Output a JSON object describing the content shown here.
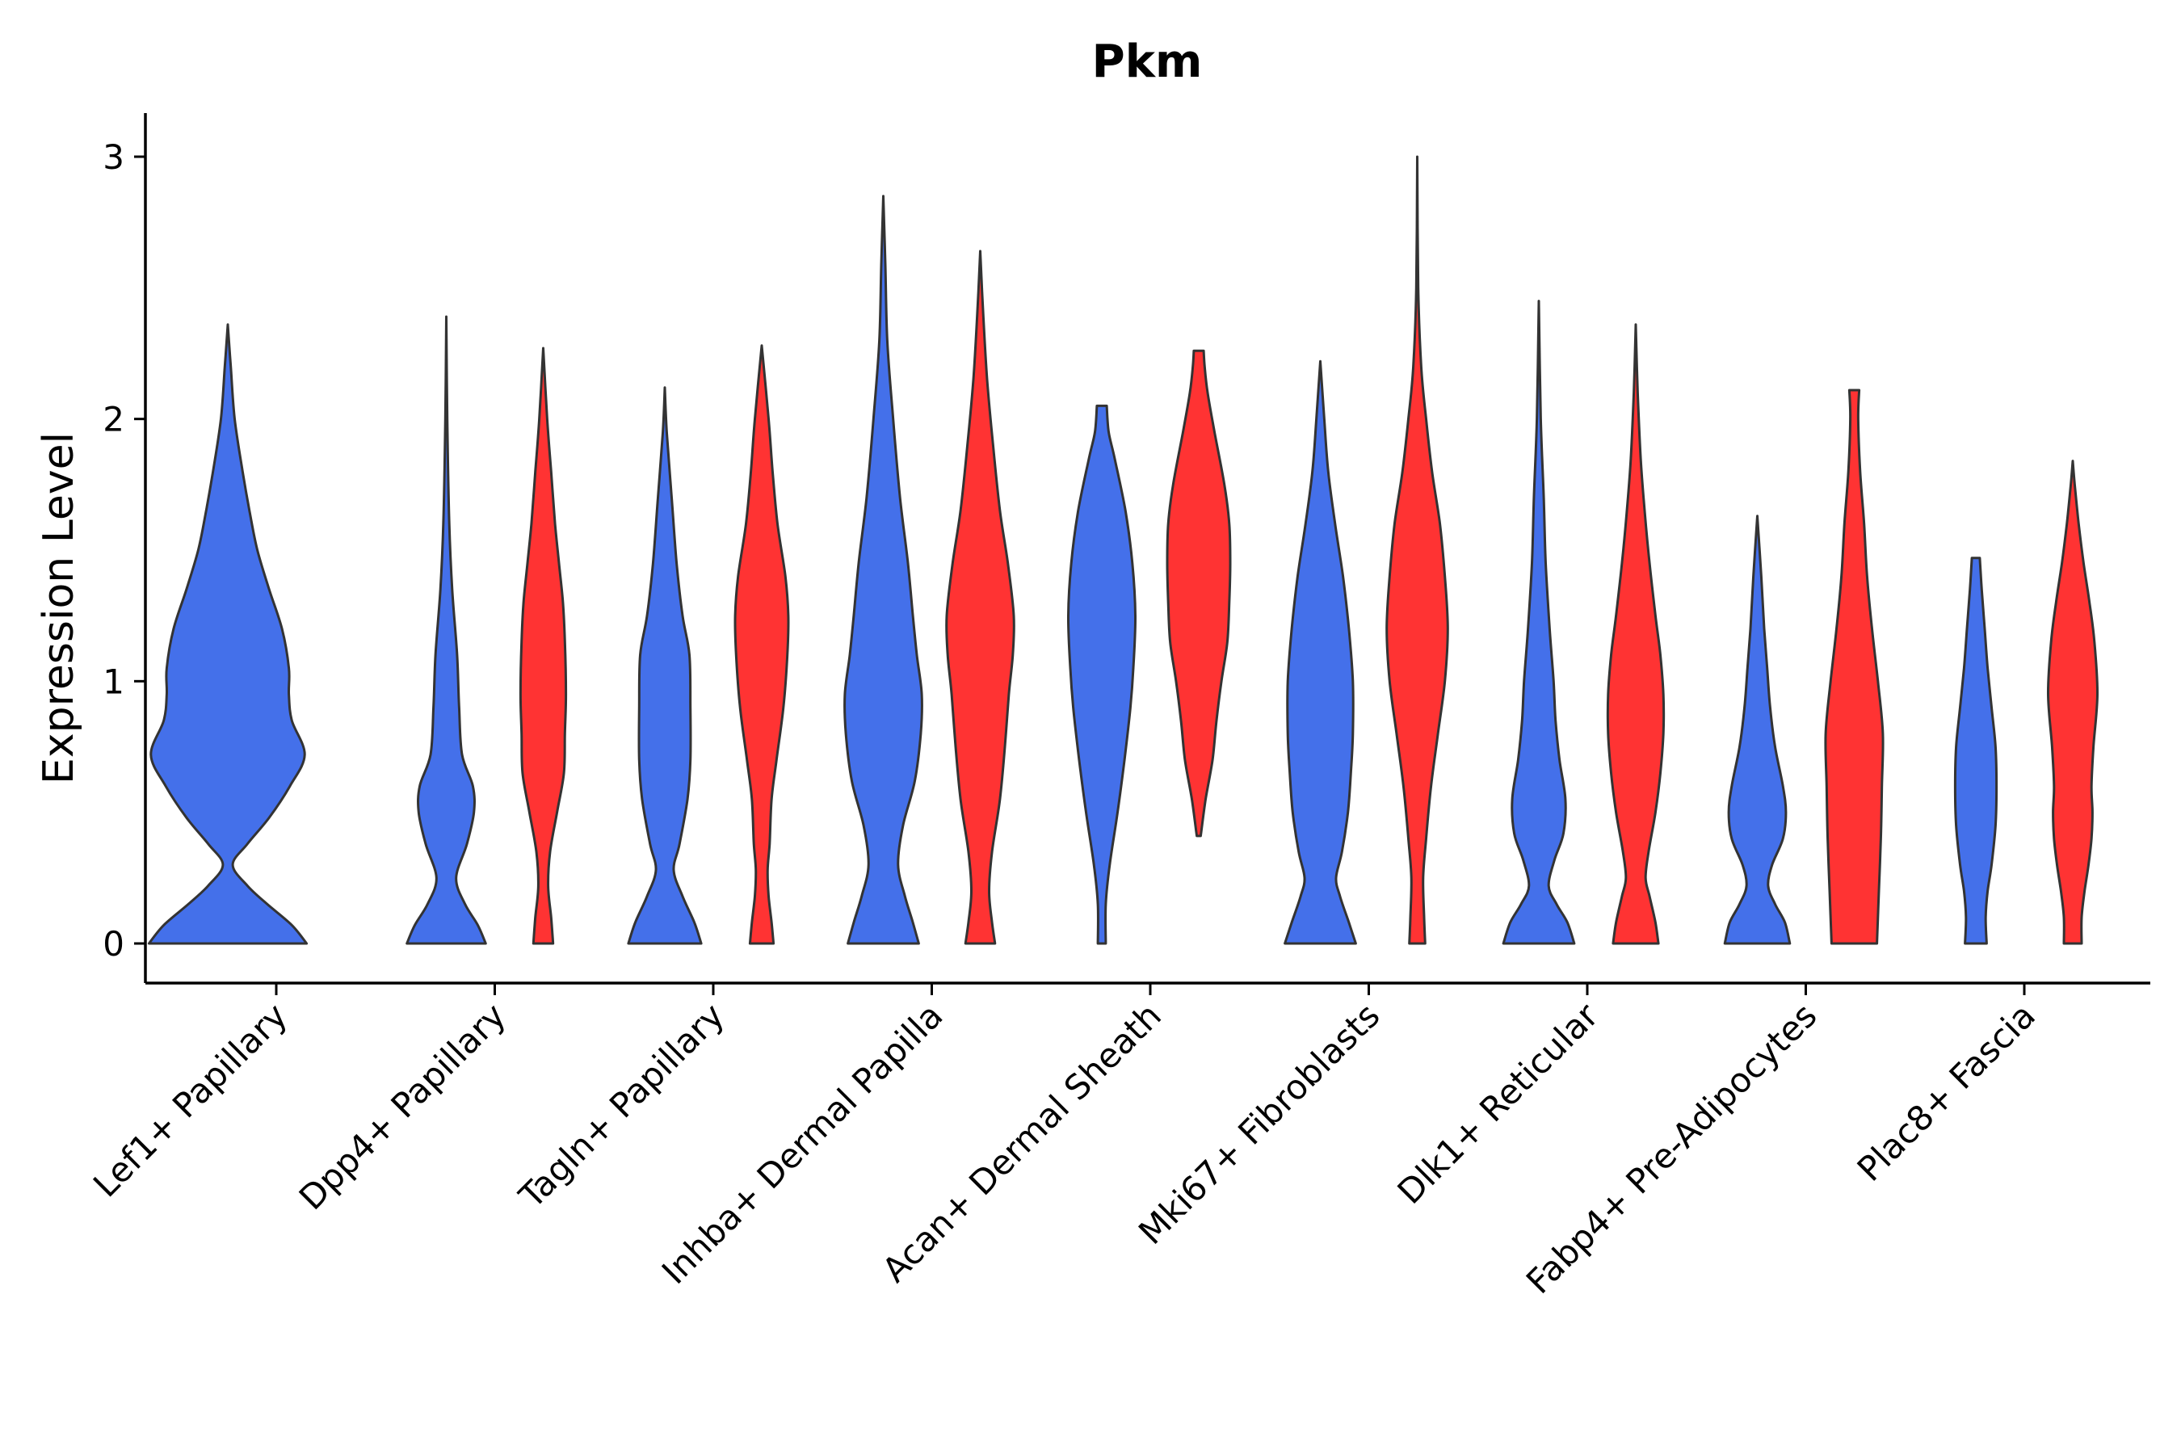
{
  "chart_data": {
    "type": "violin",
    "title": "Pkm",
    "xlabel": "",
    "ylabel": "Expression Level",
    "ylim": [
      -0.15,
      3.15
    ],
    "yticks": [
      0,
      1,
      2,
      3
    ],
    "grid": false,
    "legend": "none",
    "categories": [
      "Lef1+ Papillary",
      "Dpp4+ Papillary",
      "Tagln+ Papillary",
      "Inhba+ Dermal Papilla",
      "Acan+ Dermal Sheath",
      "Mki67+ Fibroblasts",
      "Dlk1+ Reticular",
      "Fabp4+ Pre-Adipocytes",
      "Plac8+ Fascia"
    ],
    "colors": {
      "blue": "#4470EA",
      "red": "#FF3333"
    },
    "violins": [
      {
        "category": 0,
        "group": "blue",
        "max": 2.36,
        "min": 0,
        "profile": [
          [
            0,
            0.8
          ],
          [
            0.07,
            0.65
          ],
          [
            0.15,
            0.4
          ],
          [
            0.22,
            0.2
          ],
          [
            0.3,
            0.05
          ],
          [
            0.38,
            0.2
          ],
          [
            0.48,
            0.42
          ],
          [
            0.6,
            0.63
          ],
          [
            0.72,
            0.78
          ],
          [
            0.85,
            0.65
          ],
          [
            0.95,
            0.62
          ],
          [
            1.05,
            0.62
          ],
          [
            1.2,
            0.55
          ],
          [
            1.35,
            0.42
          ],
          [
            1.5,
            0.3
          ],
          [
            1.65,
            0.22
          ],
          [
            1.8,
            0.15
          ],
          [
            2.0,
            0.07
          ],
          [
            2.2,
            0.03
          ],
          [
            2.36,
            0
          ]
        ]
      },
      {
        "category": 1,
        "group": "blue",
        "max": 2.39,
        "min": 0,
        "profile": [
          [
            0,
            0.4
          ],
          [
            0.07,
            0.32
          ],
          [
            0.15,
            0.19
          ],
          [
            0.25,
            0.1
          ],
          [
            0.38,
            0.21
          ],
          [
            0.5,
            0.28
          ],
          [
            0.6,
            0.27
          ],
          [
            0.72,
            0.16
          ],
          [
            0.9,
            0.13
          ],
          [
            1.1,
            0.11
          ],
          [
            1.35,
            0.06
          ],
          [
            1.6,
            0.03
          ],
          [
            2.0,
            0.01
          ],
          [
            2.39,
            0
          ]
        ]
      },
      {
        "category": 1,
        "group": "red",
        "max": 2.27,
        "min": 0,
        "profile": [
          [
            0,
            0.1
          ],
          [
            0.1,
            0.08
          ],
          [
            0.22,
            0.05
          ],
          [
            0.35,
            0.07
          ],
          [
            0.5,
            0.14
          ],
          [
            0.65,
            0.21
          ],
          [
            0.8,
            0.22
          ],
          [
            0.95,
            0.23
          ],
          [
            1.15,
            0.22
          ],
          [
            1.3,
            0.2
          ],
          [
            1.45,
            0.16
          ],
          [
            1.6,
            0.12
          ],
          [
            1.8,
            0.08
          ],
          [
            2.0,
            0.04
          ],
          [
            2.27,
            0
          ]
        ]
      },
      {
        "category": 2,
        "group": "blue",
        "max": 2.12,
        "min": 0,
        "profile": [
          [
            0,
            0.37
          ],
          [
            0.08,
            0.3
          ],
          [
            0.18,
            0.18
          ],
          [
            0.28,
            0.09
          ],
          [
            0.38,
            0.15
          ],
          [
            0.55,
            0.23
          ],
          [
            0.7,
            0.26
          ],
          [
            0.9,
            0.26
          ],
          [
            1.1,
            0.25
          ],
          [
            1.25,
            0.18
          ],
          [
            1.45,
            0.12
          ],
          [
            1.7,
            0.07
          ],
          [
            1.95,
            0.02
          ],
          [
            2.12,
            0
          ]
        ]
      },
      {
        "category": 2,
        "group": "red",
        "max": 2.28,
        "min": 0,
        "profile": [
          [
            0,
            0.12
          ],
          [
            0.08,
            0.1
          ],
          [
            0.18,
            0.07
          ],
          [
            0.28,
            0.06
          ],
          [
            0.38,
            0.08
          ],
          [
            0.55,
            0.1
          ],
          [
            0.7,
            0.15
          ],
          [
            0.9,
            0.22
          ],
          [
            1.1,
            0.26
          ],
          [
            1.25,
            0.27
          ],
          [
            1.4,
            0.24
          ],
          [
            1.6,
            0.16
          ],
          [
            1.8,
            0.11
          ],
          [
            2.0,
            0.07
          ],
          [
            2.28,
            0
          ]
        ]
      },
      {
        "category": 3,
        "group": "blue",
        "max": 2.85,
        "min": 0,
        "profile": [
          [
            0,
            0.36
          ],
          [
            0.08,
            0.3
          ],
          [
            0.18,
            0.22
          ],
          [
            0.3,
            0.15
          ],
          [
            0.45,
            0.2
          ],
          [
            0.62,
            0.32
          ],
          [
            0.8,
            0.38
          ],
          [
            0.95,
            0.39
          ],
          [
            1.1,
            0.34
          ],
          [
            1.25,
            0.3
          ],
          [
            1.45,
            0.25
          ],
          [
            1.7,
            0.17
          ],
          [
            2.0,
            0.1
          ],
          [
            2.3,
            0.04
          ],
          [
            2.6,
            0.02
          ],
          [
            2.85,
            0
          ]
        ]
      },
      {
        "category": 3,
        "group": "red",
        "max": 2.64,
        "min": 0,
        "profile": [
          [
            0,
            0.15
          ],
          [
            0.08,
            0.12
          ],
          [
            0.2,
            0.09
          ],
          [
            0.35,
            0.12
          ],
          [
            0.55,
            0.2
          ],
          [
            0.75,
            0.25
          ],
          [
            0.95,
            0.29
          ],
          [
            1.1,
            0.33
          ],
          [
            1.25,
            0.34
          ],
          [
            1.45,
            0.28
          ],
          [
            1.65,
            0.2
          ],
          [
            1.9,
            0.13
          ],
          [
            2.15,
            0.07
          ],
          [
            2.4,
            0.03
          ],
          [
            2.64,
            0
          ]
        ]
      },
      {
        "category": 4,
        "group": "blue",
        "max": 2.05,
        "min": 0,
        "profile": [
          [
            0,
            0.04
          ],
          [
            0.15,
            0.04
          ],
          [
            0.3,
            0.08
          ],
          [
            0.5,
            0.16
          ],
          [
            0.7,
            0.23
          ],
          [
            0.9,
            0.29
          ],
          [
            1.05,
            0.32
          ],
          [
            1.25,
            0.34
          ],
          [
            1.45,
            0.31
          ],
          [
            1.65,
            0.24
          ],
          [
            1.85,
            0.13
          ],
          [
            1.95,
            0.07
          ],
          [
            2.05,
            0.05
          ]
        ]
      },
      {
        "category": 4,
        "group": "red",
        "max": 2.26,
        "min": 0.41,
        "profile": [
          [
            0.41,
            0.02
          ],
          [
            0.55,
            0.07
          ],
          [
            0.7,
            0.14
          ],
          [
            0.85,
            0.18
          ],
          [
            1.0,
            0.23
          ],
          [
            1.15,
            0.29
          ],
          [
            1.3,
            0.31
          ],
          [
            1.45,
            0.32
          ],
          [
            1.6,
            0.31
          ],
          [
            1.75,
            0.26
          ],
          [
            1.95,
            0.16
          ],
          [
            2.1,
            0.09
          ],
          [
            2.2,
            0.06
          ],
          [
            2.26,
            0.05
          ]
        ]
      },
      {
        "category": 5,
        "group": "blue",
        "max": 2.22,
        "min": 0,
        "profile": [
          [
            0,
            0.36
          ],
          [
            0.08,
            0.29
          ],
          [
            0.18,
            0.2
          ],
          [
            0.25,
            0.16
          ],
          [
            0.35,
            0.22
          ],
          [
            0.5,
            0.28
          ],
          [
            0.65,
            0.31
          ],
          [
            0.8,
            0.33
          ],
          [
            1.0,
            0.33
          ],
          [
            1.2,
            0.29
          ],
          [
            1.4,
            0.23
          ],
          [
            1.6,
            0.15
          ],
          [
            1.8,
            0.08
          ],
          [
            2.0,
            0.04
          ],
          [
            2.22,
            0
          ]
        ]
      },
      {
        "category": 5,
        "group": "red",
        "max": 3.0,
        "min": 0,
        "profile": [
          [
            0,
            0.08
          ],
          [
            0.1,
            0.07
          ],
          [
            0.25,
            0.06
          ],
          [
            0.4,
            0.09
          ],
          [
            0.6,
            0.14
          ],
          [
            0.8,
            0.21
          ],
          [
            1.0,
            0.28
          ],
          [
            1.2,
            0.31
          ],
          [
            1.4,
            0.28
          ],
          [
            1.6,
            0.23
          ],
          [
            1.8,
            0.15
          ],
          [
            2.0,
            0.09
          ],
          [
            2.2,
            0.04
          ],
          [
            2.5,
            0.01
          ],
          [
            3.0,
            0
          ]
        ]
      },
      {
        "category": 6,
        "group": "blue",
        "max": 2.45,
        "min": 0,
        "profile": [
          [
            0,
            0.36
          ],
          [
            0.08,
            0.29
          ],
          [
            0.15,
            0.18
          ],
          [
            0.22,
            0.1
          ],
          [
            0.32,
            0.16
          ],
          [
            0.42,
            0.25
          ],
          [
            0.55,
            0.27
          ],
          [
            0.7,
            0.21
          ],
          [
            0.85,
            0.17
          ],
          [
            1.0,
            0.15
          ],
          [
            1.2,
            0.11
          ],
          [
            1.45,
            0.07
          ],
          [
            1.7,
            0.05
          ],
          [
            2.0,
            0.02
          ],
          [
            2.45,
            0
          ]
        ]
      },
      {
        "category": 6,
        "group": "red",
        "max": 2.36,
        "min": 0,
        "profile": [
          [
            0,
            0.23
          ],
          [
            0.08,
            0.2
          ],
          [
            0.18,
            0.14
          ],
          [
            0.25,
            0.1
          ],
          [
            0.35,
            0.13
          ],
          [
            0.5,
            0.2
          ],
          [
            0.65,
            0.25
          ],
          [
            0.8,
            0.28
          ],
          [
            0.95,
            0.28
          ],
          [
            1.1,
            0.25
          ],
          [
            1.25,
            0.2
          ],
          [
            1.45,
            0.14
          ],
          [
            1.65,
            0.09
          ],
          [
            1.85,
            0.05
          ],
          [
            2.1,
            0.02
          ],
          [
            2.36,
            0
          ]
        ]
      },
      {
        "category": 7,
        "group": "blue",
        "max": 1.63,
        "min": 0,
        "profile": [
          [
            0,
            0.33
          ],
          [
            0.08,
            0.28
          ],
          [
            0.15,
            0.18
          ],
          [
            0.22,
            0.11
          ],
          [
            0.3,
            0.15
          ],
          [
            0.4,
            0.26
          ],
          [
            0.5,
            0.29
          ],
          [
            0.6,
            0.26
          ],
          [
            0.75,
            0.18
          ],
          [
            0.9,
            0.13
          ],
          [
            1.05,
            0.1
          ],
          [
            1.2,
            0.07
          ],
          [
            1.4,
            0.04
          ],
          [
            1.63,
            0
          ]
        ]
      },
      {
        "category": 7,
        "group": "red",
        "max": 2.11,
        "min": 0,
        "profile": [
          [
            0,
            0.23
          ],
          [
            0.2,
            0.25
          ],
          [
            0.4,
            0.27
          ],
          [
            0.6,
            0.28
          ],
          [
            0.8,
            0.29
          ],
          [
            1.0,
            0.24
          ],
          [
            1.2,
            0.18
          ],
          [
            1.4,
            0.13
          ],
          [
            1.6,
            0.1
          ],
          [
            1.8,
            0.06
          ],
          [
            2.0,
            0.04
          ],
          [
            2.11,
            0.05
          ]
        ]
      },
      {
        "category": 8,
        "group": "blue",
        "max": 1.47,
        "min": 0,
        "profile": [
          [
            0,
            0.11
          ],
          [
            0.1,
            0.1
          ],
          [
            0.2,
            0.12
          ],
          [
            0.3,
            0.16
          ],
          [
            0.45,
            0.2
          ],
          [
            0.6,
            0.21
          ],
          [
            0.75,
            0.2
          ],
          [
            0.9,
            0.16
          ],
          [
            1.05,
            0.12
          ],
          [
            1.2,
            0.09
          ],
          [
            1.35,
            0.06
          ],
          [
            1.47,
            0.04
          ]
        ]
      },
      {
        "category": 8,
        "group": "red",
        "max": 1.84,
        "min": 0,
        "profile": [
          [
            0,
            0.09
          ],
          [
            0.1,
            0.09
          ],
          [
            0.2,
            0.12
          ],
          [
            0.3,
            0.16
          ],
          [
            0.4,
            0.19
          ],
          [
            0.5,
            0.2
          ],
          [
            0.6,
            0.19
          ],
          [
            0.75,
            0.21
          ],
          [
            0.95,
            0.25
          ],
          [
            1.15,
            0.22
          ],
          [
            1.3,
            0.17
          ],
          [
            1.45,
            0.11
          ],
          [
            1.6,
            0.06
          ],
          [
            1.75,
            0.02
          ],
          [
            1.84,
            0
          ]
        ]
      }
    ]
  }
}
